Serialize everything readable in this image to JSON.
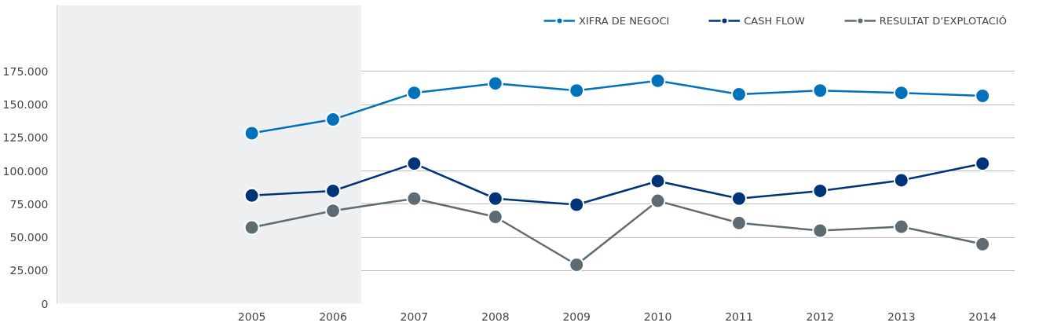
{
  "chart_data": {
    "type": "line",
    "x": [
      2005,
      2006,
      2007,
      2008,
      2009,
      2010,
      2011,
      2012,
      2013,
      2014
    ],
    "series": [
      {
        "name": "XIFRA DE NEGOCI",
        "color": "#0072b9",
        "values": [
          128500,
          138800,
          158900,
          166000,
          160600,
          168000,
          157800,
          160600,
          158900,
          156600
        ]
      },
      {
        "name": "CASH FLOW",
        "color": "#003479",
        "values": [
          81500,
          85000,
          105600,
          79200,
          74600,
          92400,
          79200,
          85000,
          93000,
          105600
        ]
      },
      {
        "name": "RESULTAT D’EXPLOTACIÓ",
        "color": "#5f6b73",
        "values": [
          57400,
          70000,
          79200,
          65400,
          29300,
          77500,
          60800,
          55000,
          58000,
          44800
        ]
      }
    ],
    "xlim": [
      2002.6,
      2014.4
    ],
    "xticks": [
      2005,
      2006,
      2007,
      2008,
      2009,
      2010,
      2011,
      2012,
      2013,
      2014
    ],
    "ylim": [
      0,
      225000
    ],
    "yticks": [
      {
        "value": 0,
        "label": "0"
      },
      {
        "value": 25000,
        "label": "25.000"
      },
      {
        "value": 50000,
        "label": "50.000"
      },
      {
        "value": 75000,
        "label": "75.000"
      },
      {
        "value": 100000,
        "label": "100.000"
      },
      {
        "value": 125000,
        "label": "125.000"
      },
      {
        "value": 150000,
        "label": "150.000"
      },
      {
        "value": 175000,
        "label": "175.000"
      }
    ],
    "bands": [
      {
        "axis": "x",
        "from": 2002.6,
        "to": 2006.35,
        "color": "#eeeff1"
      }
    ],
    "grid": "y",
    "legend": "top right",
    "marker": "circle",
    "line_style": "solid"
  }
}
